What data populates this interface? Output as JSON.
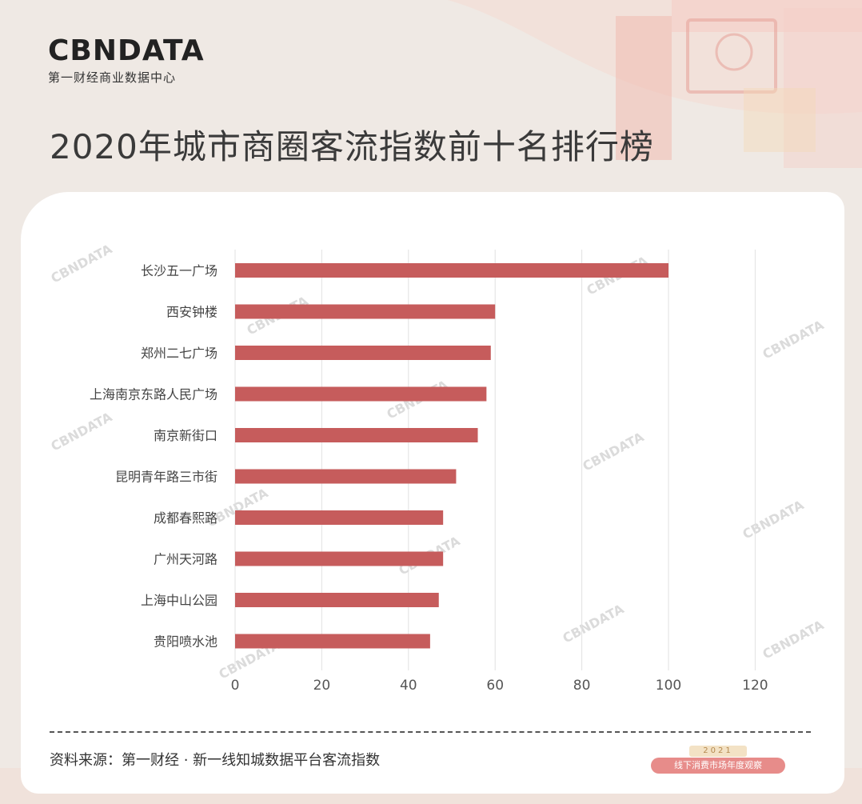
{
  "brand": {
    "logo": "CBNDATA",
    "tagline": "第一财经商业数据中心"
  },
  "title": "2020年城市商圈客流指数前十名排行榜",
  "source": "资料来源：第一财经 · 新一线知城数据平台客流指数",
  "badge": {
    "year": "2021",
    "text": "线下消费市场年度观察"
  },
  "watermark": "CBNDATA",
  "colors": {
    "bar": "#c65c5c",
    "grid": "#e2e2e2",
    "background": "#efe9e4"
  },
  "chart_data": {
    "type": "bar",
    "orientation": "horizontal",
    "categories": [
      "长沙五一广场",
      "西安钟楼",
      "郑州二七广场",
      "上海南京东路人民广场",
      "南京新街口",
      "昆明青年路三市街",
      "成都春熙路",
      "广州天河路",
      "上海中山公园",
      "贵阳喷水池"
    ],
    "values": [
      100,
      60,
      59,
      58,
      56,
      51,
      48,
      48,
      47,
      45
    ],
    "xlim": [
      0,
      120
    ],
    "xticks": [
      0,
      20,
      40,
      60,
      80,
      100,
      120
    ],
    "grid": "vertical",
    "legend": "none"
  }
}
